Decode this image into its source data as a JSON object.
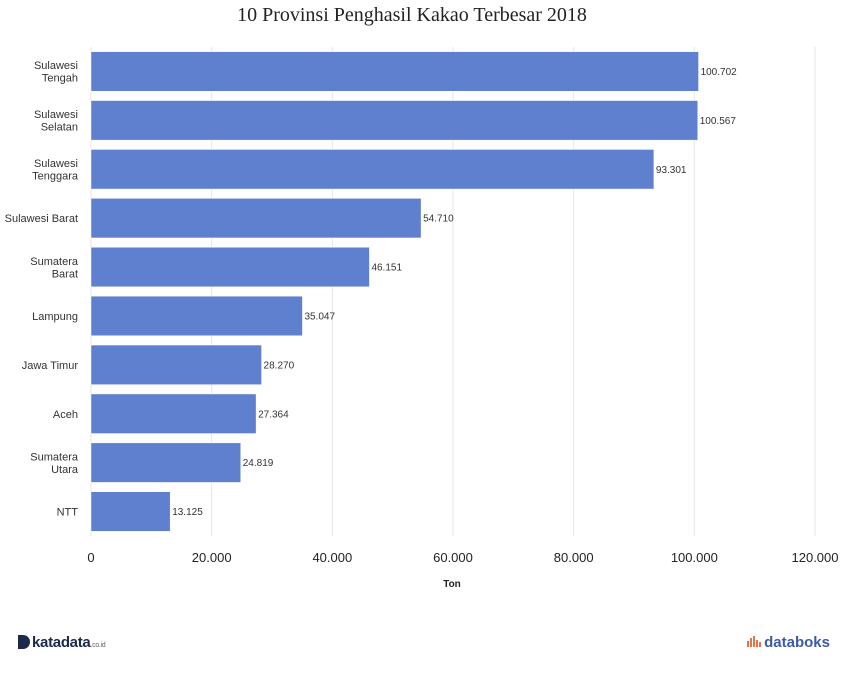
{
  "chart_data": {
    "type": "bar",
    "orientation": "horizontal",
    "title": "10 Provinsi Penghasil Kakao Terbesar 2018",
    "xlabel": "Ton",
    "ylabel": "",
    "xlim": [
      0,
      120000
    ],
    "xticks": [
      0,
      20000,
      40000,
      60000,
      80000,
      100000,
      120000
    ],
    "xtick_labels": [
      "0",
      "20.000",
      "40.000",
      "60.000",
      "80.000",
      "100.000",
      "120.000"
    ],
    "grid": true,
    "bar_color": "#5f7fcf",
    "categories": [
      [
        "Sulawesi",
        "Tengah"
      ],
      [
        "Sulawesi",
        "Selatan"
      ],
      [
        "Sulawesi",
        "Tenggara"
      ],
      [
        "Sulawesi Barat"
      ],
      [
        "Sumatera",
        "Barat"
      ],
      [
        "Lampung"
      ],
      [
        "Jawa Timur"
      ],
      [
        "Aceh"
      ],
      [
        "Sumatera",
        "Utara"
      ],
      [
        "NTT"
      ]
    ],
    "values": [
      100702,
      100567,
      93301,
      54710,
      46151,
      35047,
      28270,
      27364,
      24819,
      13125
    ],
    "value_labels": [
      "100.702",
      "100.567",
      "93.301",
      "54.710",
      "46.151",
      "35.047",
      "28.270",
      "27.364",
      "24.819",
      "13.125"
    ]
  },
  "footer": {
    "left_logo": "katadata",
    "left_suffix": ".co.id",
    "right_logo": "databoks"
  }
}
